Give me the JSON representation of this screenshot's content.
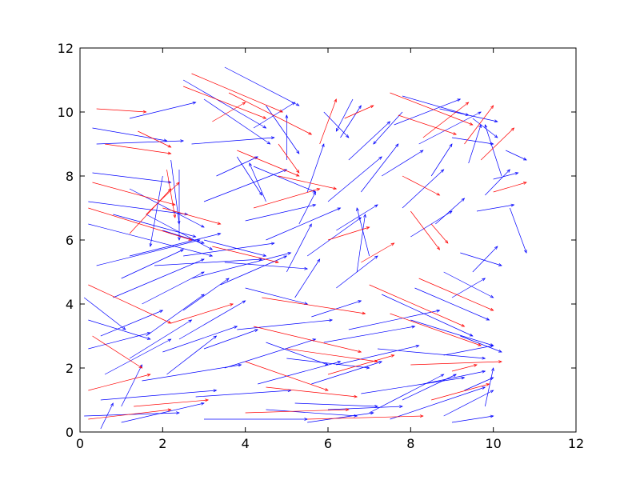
{
  "chart_data": {
    "type": "quiver",
    "title": "",
    "xlabel": "",
    "ylabel": "",
    "xlim": [
      0,
      12
    ],
    "ylim": [
      0,
      12
    ],
    "xticks": [
      "0",
      "2",
      "4",
      "6",
      "8",
      "10",
      "12"
    ],
    "yticks": [
      "0",
      "2",
      "4",
      "6",
      "8",
      "10",
      "12"
    ],
    "grid": false,
    "colors": {
      "primary": "#0000ff",
      "secondary": "#ff0000"
    },
    "series": [
      {
        "color": "#0000ff",
        "vectors": [
          [
            0.1,
            0.5,
            2.3,
            0.1
          ],
          [
            0.5,
            1.0,
            2.8,
            0.3
          ],
          [
            1.0,
            0.3,
            2.0,
            0.6
          ],
          [
            1.5,
            1.6,
            2.4,
            0.5
          ],
          [
            2.0,
            2.5,
            1.8,
            0.8
          ],
          [
            0.2,
            3.5,
            1.5,
            -0.6
          ],
          [
            0.8,
            4.2,
            2.2,
            1.2
          ],
          [
            1.6,
            3.0,
            1.4,
            1.3
          ],
          [
            2.5,
            3.8,
            1.1,
            1.0
          ],
          [
            0.4,
            5.2,
            2.5,
            0.8
          ],
          [
            1.2,
            5.5,
            2.2,
            0.7
          ],
          [
            0.2,
            6.5,
            3.0,
            -1.0
          ],
          [
            0.2,
            7.2,
            2.4,
            -0.4
          ],
          [
            0.3,
            8.1,
            1.9,
            -0.3
          ],
          [
            0.3,
            9.5,
            1.8,
            -0.4
          ],
          [
            0.4,
            9.0,
            2.1,
            0.1
          ],
          [
            1.2,
            9.8,
            1.6,
            0.5
          ],
          [
            2.2,
            8.5,
            0.2,
            -2.0
          ],
          [
            2.4,
            8.2,
            0.0,
            -2.2
          ],
          [
            2.0,
            8.0,
            -0.3,
            -2.2
          ],
          [
            3.0,
            6.0,
            1.5,
            -0.5
          ],
          [
            3.5,
            5.3,
            2.0,
            -0.2
          ],
          [
            2.7,
            4.8,
            2.4,
            0.8
          ],
          [
            4.0,
            4.5,
            1.5,
            -0.5
          ],
          [
            3.0,
            7.2,
            2.0,
            1.0
          ],
          [
            3.3,
            8.0,
            1.0,
            0.6
          ],
          [
            2.7,
            9.0,
            2.0,
            0.2
          ],
          [
            3.0,
            10.4,
            1.6,
            -1.4
          ],
          [
            2.5,
            11.0,
            2.0,
            -1.5
          ],
          [
            3.5,
            11.4,
            1.8,
            -1.2
          ],
          [
            4.5,
            10.2,
            0.8,
            -1.5
          ],
          [
            4.2,
            8.3,
            1.5,
            -0.8
          ],
          [
            4.0,
            6.6,
            1.7,
            0.5
          ],
          [
            4.5,
            6.0,
            1.8,
            1.0
          ],
          [
            3.8,
            3.2,
            2.3,
            0.3
          ],
          [
            4.5,
            2.8,
            1.5,
            -0.7
          ],
          [
            3.5,
            2.0,
            2.2,
            0.9
          ],
          [
            4.3,
            1.5,
            2.0,
            0.7
          ],
          [
            2.8,
            1.1,
            2.3,
            0.2
          ],
          [
            3.0,
            0.4,
            2.5,
            0.0
          ],
          [
            4.5,
            0.7,
            2.2,
            -0.2
          ],
          [
            5.2,
            0.9,
            2.0,
            -0.1
          ],
          [
            5.5,
            0.3,
            1.6,
            0.3
          ],
          [
            5.6,
            1.5,
            1.7,
            0.7
          ],
          [
            6.2,
            2.1,
            2.0,
            0.6
          ],
          [
            6.8,
            1.2,
            2.5,
            0.5
          ],
          [
            7.5,
            0.4,
            2.3,
            1.0
          ],
          [
            8.3,
            1.5,
            1.5,
            0.4
          ],
          [
            8.8,
            0.5,
            1.2,
            0.8
          ],
          [
            9.3,
            1.3,
            0.7,
            0.4
          ],
          [
            9.8,
            0.8,
            0.2,
            1.2
          ],
          [
            6.5,
            3.2,
            2.2,
            0.6
          ],
          [
            7.2,
            2.6,
            2.6,
            -0.3
          ],
          [
            8.0,
            3.5,
            2.0,
            -0.8
          ],
          [
            8.8,
            2.4,
            1.2,
            0.3
          ],
          [
            9.2,
            3.0,
            1.0,
            -0.5
          ],
          [
            7.3,
            4.3,
            2.2,
            -1.3
          ],
          [
            8.1,
            4.5,
            1.8,
            -1.0
          ],
          [
            8.8,
            5.0,
            1.2,
            -0.8
          ],
          [
            9.2,
            5.6,
            1.0,
            -0.4
          ],
          [
            6.7,
            5.0,
            0.2,
            1.8
          ],
          [
            7.0,
            5.5,
            -0.3,
            1.5
          ],
          [
            6.2,
            4.5,
            1.0,
            1.0
          ],
          [
            5.6,
            3.6,
            1.2,
            0.5
          ],
          [
            5.2,
            4.2,
            0.6,
            1.2
          ],
          [
            5.0,
            5.0,
            0.6,
            1.5
          ],
          [
            5.5,
            5.5,
            1.3,
            1.2
          ],
          [
            6.2,
            6.3,
            1.0,
            0.8
          ],
          [
            6.0,
            7.2,
            1.3,
            1.4
          ],
          [
            6.8,
            7.5,
            0.9,
            1.5
          ],
          [
            6.5,
            8.5,
            1.0,
            1.2
          ],
          [
            6.3,
            9.2,
            0.5,
            1.0
          ],
          [
            7.3,
            8.0,
            1.0,
            0.8
          ],
          [
            7.8,
            7.0,
            1.0,
            1.2
          ],
          [
            8.0,
            6.1,
            1.0,
            0.8
          ],
          [
            8.6,
            6.5,
            0.7,
            0.8
          ],
          [
            8.5,
            8.0,
            0.5,
            1.0
          ],
          [
            8.2,
            9.0,
            1.5,
            1.0
          ],
          [
            7.6,
            9.6,
            1.6,
            0.8
          ],
          [
            7.8,
            10.5,
            1.6,
            -0.6
          ],
          [
            8.7,
            10.1,
            1.4,
            -0.4
          ],
          [
            9.0,
            9.2,
            1.0,
            -0.2
          ],
          [
            9.4,
            8.4,
            0.3,
            1.2
          ],
          [
            9.8,
            7.4,
            0.6,
            0.8
          ],
          [
            10.0,
            7.9,
            0.6,
            0.2
          ],
          [
            9.6,
            6.9,
            0.9,
            0.2
          ],
          [
            10.3,
            8.8,
            0.5,
            -0.3
          ],
          [
            10.2,
            8.0,
            -0.4,
            1.6
          ],
          [
            10.4,
            7.0,
            0.4,
            -1.4
          ],
          [
            9.5,
            5.0,
            0.6,
            0.8
          ],
          [
            9.0,
            4.2,
            0.8,
            0.6
          ],
          [
            7.0,
            0.6,
            1.8,
            1.2
          ],
          [
            7.8,
            1.0,
            1.3,
            0.8
          ],
          [
            9.0,
            0.3,
            1.0,
            0.2
          ],
          [
            5.9,
            2.8,
            2.2,
            0.5
          ],
          [
            5.0,
            2.3,
            2.0,
            -0.3
          ],
          [
            6.0,
            0.7,
            1.8,
            0.1
          ],
          [
            1.2,
            7.6,
            1.8,
            -1.2
          ],
          [
            1.6,
            6.8,
            1.6,
            -1.1
          ],
          [
            0.8,
            6.8,
            2.0,
            -0.7
          ],
          [
            2.0,
            6.3,
            1.0,
            -0.4
          ],
          [
            1.8,
            5.2,
            2.6,
            0.2
          ],
          [
            2.5,
            5.5,
            2.2,
            0.4
          ],
          [
            0.6,
            1.8,
            1.6,
            1.1
          ],
          [
            1.2,
            2.3,
            1.5,
            1.2
          ],
          [
            2.1,
            1.8,
            1.2,
            1.2
          ],
          [
            3.0,
            2.6,
            1.3,
            0.6
          ],
          [
            0.2,
            2.6,
            1.5,
            0.5
          ],
          [
            0.5,
            0.1,
            0.3,
            0.8
          ],
          [
            1.0,
            0.8,
            0.5,
            1.3
          ],
          [
            5.5,
            7.5,
            0.4,
            1.5
          ],
          [
            5.0,
            8.5,
            0.0,
            1.4
          ],
          [
            5.3,
            6.5,
            0.4,
            1.0
          ],
          [
            3.8,
            8.6,
            0.6,
            -1.2
          ],
          [
            4.5,
            7.2,
            -0.4,
            1.2
          ],
          [
            4.2,
            9.5,
            1.0,
            0.8
          ],
          [
            5.9,
            10.0,
            0.6,
            -0.8
          ],
          [
            6.6,
            10.4,
            -0.4,
            -1.0
          ],
          [
            7.8,
            10.0,
            -0.7,
            -1.0
          ],
          [
            9.5,
            9.8,
            0.6,
            -0.6
          ],
          [
            1.0,
            4.8,
            1.5,
            0.9
          ],
          [
            1.5,
            4.0,
            1.5,
            1.0
          ],
          [
            0.5,
            3.0,
            1.5,
            0.8
          ],
          [
            0.1,
            4.2,
            1.0,
            -1.0
          ],
          [
            2.4,
            2.9,
            1.6,
            1.2
          ],
          [
            3.4,
            4.6,
            1.6,
            0.9
          ]
        ]
      },
      {
        "color": "#ff0000",
        "vectors": [
          [
            0.2,
            4.6,
            2.0,
            -1.2
          ],
          [
            0.3,
            3.0,
            1.2,
            -1.0
          ],
          [
            0.2,
            1.3,
            1.5,
            0.5
          ],
          [
            0.2,
            0.4,
            2.0,
            0.3
          ],
          [
            1.3,
            0.8,
            1.8,
            0.2
          ],
          [
            2.2,
            3.4,
            1.5,
            0.6
          ],
          [
            0.2,
            7.0,
            2.5,
            -1.0
          ],
          [
            0.3,
            7.8,
            2.0,
            -0.7
          ],
          [
            0.6,
            9.0,
            1.6,
            -0.3
          ],
          [
            0.4,
            10.1,
            1.2,
            -0.1
          ],
          [
            1.2,
            6.2,
            1.0,
            1.4
          ],
          [
            1.6,
            6.8,
            0.8,
            1.0
          ],
          [
            2.1,
            8.2,
            0.2,
            -1.5
          ],
          [
            2.5,
            10.8,
            2.0,
            -1.0
          ],
          [
            2.7,
            11.2,
            2.2,
            -1.2
          ],
          [
            3.6,
            10.6,
            2.0,
            -1.3
          ],
          [
            3.8,
            8.8,
            1.5,
            -0.8
          ],
          [
            4.8,
            8.0,
            1.4,
            -0.4
          ],
          [
            4.2,
            7.0,
            1.6,
            0.6
          ],
          [
            4.4,
            4.2,
            2.5,
            -0.5
          ],
          [
            4.2,
            3.3,
            2.6,
            -0.8
          ],
          [
            5.0,
            2.6,
            2.2,
            -0.4
          ],
          [
            4.0,
            2.2,
            2.0,
            -0.9
          ],
          [
            4.5,
            1.4,
            2.2,
            -0.3
          ],
          [
            4.0,
            0.6,
            2.5,
            0.1
          ],
          [
            5.5,
            0.4,
            2.8,
            0.1
          ],
          [
            6.0,
            1.8,
            1.6,
            0.6
          ],
          [
            7.0,
            4.6,
            2.3,
            -1.3
          ],
          [
            7.5,
            3.7,
            2.2,
            -1.0
          ],
          [
            8.2,
            4.8,
            1.8,
            -1.0
          ],
          [
            8.0,
            2.1,
            2.2,
            0.1
          ],
          [
            8.5,
            1.0,
            1.4,
            0.5
          ],
          [
            9.0,
            1.9,
            0.6,
            0.2
          ],
          [
            7.5,
            10.6,
            2.0,
            -1.0
          ],
          [
            7.7,
            9.9,
            1.4,
            -0.6
          ],
          [
            8.3,
            9.2,
            1.1,
            1.1
          ],
          [
            9.3,
            9.0,
            0.7,
            1.2
          ],
          [
            9.7,
            8.5,
            0.8,
            1.0
          ],
          [
            10.0,
            7.5,
            0.8,
            0.3
          ],
          [
            7.8,
            8.0,
            0.9,
            -0.6
          ],
          [
            8.0,
            6.9,
            0.7,
            -1.2
          ],
          [
            6.0,
            6.0,
            1.0,
            0.4
          ],
          [
            6.8,
            5.3,
            0.8,
            0.6
          ],
          [
            8.5,
            6.5,
            0.4,
            -0.6
          ],
          [
            5.8,
            9.0,
            0.4,
            1.4
          ],
          [
            6.4,
            9.8,
            0.7,
            0.4
          ],
          [
            3.2,
            9.7,
            0.8,
            0.6
          ],
          [
            4.8,
            9.0,
            0.5,
            -0.9
          ],
          [
            1.4,
            9.4,
            0.8,
            -0.5
          ],
          [
            3.2,
            5.8,
            1.6,
            -0.5
          ],
          [
            2.0,
            7.0,
            1.4,
            -0.5
          ]
        ]
      }
    ]
  }
}
